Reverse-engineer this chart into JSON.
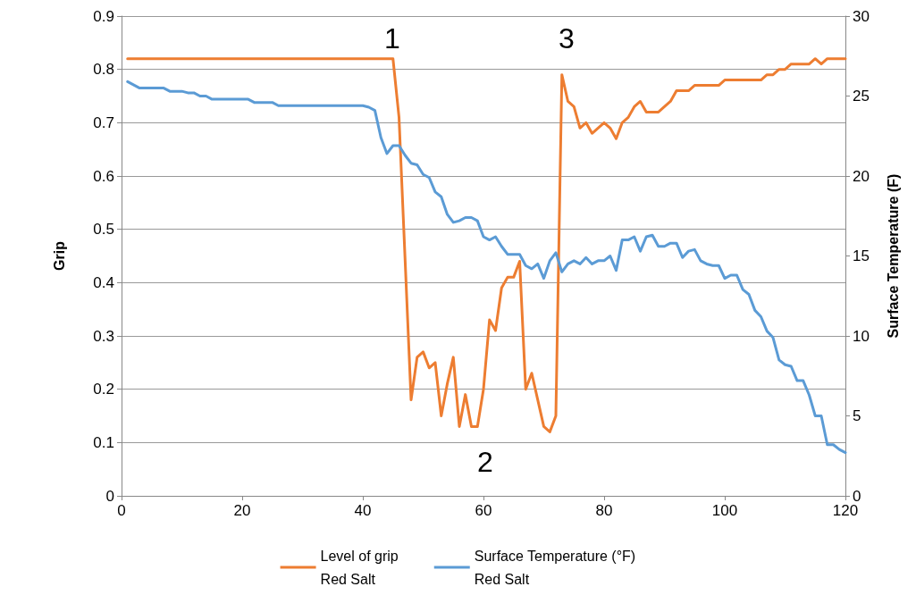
{
  "chart_data": {
    "type": "line",
    "ylabel": "Grip",
    "y2label": "Surface Temperature (F)",
    "xlim": [
      0,
      120
    ],
    "xticks": [
      0,
      20,
      40,
      60,
      80,
      100,
      120
    ],
    "ylim": [
      0,
      0.9
    ],
    "yticks": [
      0,
      0.1,
      0.2,
      0.3,
      0.4,
      0.5,
      0.6,
      0.7,
      0.8,
      0.9
    ],
    "y2lim": [
      0,
      30
    ],
    "y2ticks": [
      0,
      5,
      10,
      15,
      20,
      25,
      30
    ],
    "grid": "y",
    "legend": "bottom",
    "marker": "none",
    "line_style": "solid",
    "annotations": [
      "1",
      "2",
      "3"
    ],
    "series": [
      {
        "name": "Level of grip\nRed Salt",
        "color": "#ed7d31",
        "x": [
          1,
          45,
          46,
          48,
          49,
          50,
          51,
          52,
          53,
          54,
          55,
          56,
          57,
          58,
          59,
          60,
          61,
          62,
          63,
          64,
          65,
          66,
          67,
          68,
          69,
          70,
          71,
          72,
          73,
          74,
          75,
          76,
          77,
          78,
          79,
          80,
          81,
          82,
          83,
          84,
          85,
          86,
          87,
          89,
          90,
          91,
          92,
          94,
          95,
          99,
          100,
          106,
          107,
          108,
          109,
          110,
          111,
          114,
          115,
          116,
          117,
          120
        ],
        "values": [
          0.82,
          0.82,
          0.71,
          0.18,
          0.26,
          0.27,
          0.24,
          0.25,
          0.15,
          0.21,
          0.26,
          0.13,
          0.19,
          0.13,
          0.13,
          0.2,
          0.33,
          0.31,
          0.39,
          0.41,
          0.41,
          0.44,
          0.2,
          0.23,
          0.18,
          0.13,
          0.12,
          0.15,
          0.79,
          0.74,
          0.73,
          0.69,
          0.7,
          0.68,
          0.69,
          0.7,
          0.69,
          0.67,
          0.7,
          0.71,
          0.73,
          0.74,
          0.72,
          0.72,
          0.73,
          0.74,
          0.76,
          0.76,
          0.77,
          0.77,
          0.78,
          0.78,
          0.79,
          0.79,
          0.8,
          0.8,
          0.81,
          0.81,
          0.82,
          0.81,
          0.82,
          0.82
        ]
      },
      {
        "name": "Surface Temperature (°F)\nRed Salt",
        "color": "#5b9bd5",
        "axis": "y2",
        "x": [
          1,
          3,
          7,
          8,
          10,
          11,
          12,
          13,
          14,
          15,
          21,
          22,
          25,
          26,
          40,
          41,
          42,
          43,
          44,
          45,
          46,
          47,
          48,
          49,
          50,
          51,
          52,
          53,
          54,
          55,
          56,
          57,
          58,
          59,
          60,
          61,
          62,
          63,
          64,
          65,
          66,
          67,
          68,
          69,
          70,
          71,
          72,
          73,
          74,
          75,
          76,
          77,
          78,
          79,
          80,
          81,
          82,
          83,
          84,
          85,
          86,
          87,
          88,
          89,
          90,
          91,
          92,
          93,
          94,
          95,
          96,
          97,
          98,
          99,
          100,
          101,
          102,
          103,
          104,
          105,
          106,
          107,
          108,
          109,
          110,
          111,
          112,
          113,
          114,
          115,
          116,
          117,
          118,
          119,
          120
        ],
        "values": [
          25.9,
          25.5,
          25.5,
          25.3,
          25.3,
          25.2,
          25.2,
          25.0,
          25.0,
          24.8,
          24.8,
          24.6,
          24.6,
          24.4,
          24.4,
          24.3,
          24.1,
          22.4,
          21.4,
          21.9,
          21.9,
          21.3,
          20.8,
          20.7,
          20.1,
          19.9,
          19.0,
          18.7,
          17.6,
          17.1,
          17.2,
          17.4,
          17.4,
          17.2,
          16.2,
          16.0,
          16.2,
          15.6,
          15.1,
          15.1,
          15.1,
          14.4,
          14.2,
          14.5,
          13.6,
          14.7,
          15.2,
          14.0,
          14.5,
          14.7,
          14.5,
          14.9,
          14.5,
          14.7,
          14.7,
          15.0,
          14.1,
          16.0,
          16.0,
          16.2,
          15.3,
          16.2,
          16.3,
          15.6,
          15.6,
          15.8,
          15.8,
          14.9,
          15.3,
          15.4,
          14.7,
          14.5,
          14.4,
          14.4,
          13.6,
          13.8,
          13.8,
          12.9,
          12.6,
          11.6,
          11.2,
          10.3,
          9.9,
          8.5,
          8.2,
          8.1,
          7.2,
          7.2,
          6.3,
          5.0,
          5.0,
          3.2,
          3.2,
          2.9,
          2.7
        ]
      }
    ]
  }
}
